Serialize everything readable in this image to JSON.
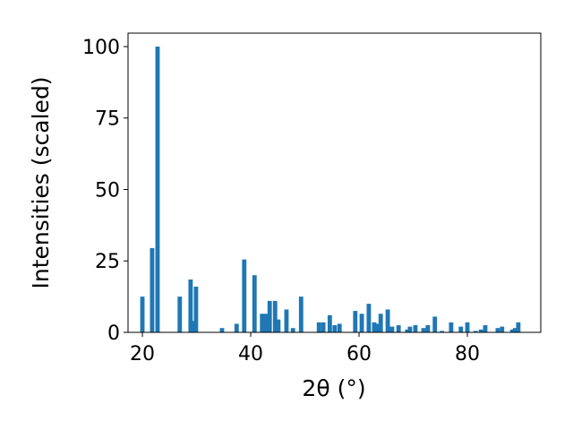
{
  "chart_data": {
    "type": "bar",
    "xlabel": "2θ (°)",
    "ylabel": "Intensities (scaled)",
    "x": [
      20.0,
      21.8,
      22.8,
      26.9,
      28.9,
      29.4,
      29.9,
      34.7,
      37.4,
      38.8,
      40.7,
      42.1,
      42.8,
      43.5,
      44.5,
      45.1,
      46.6,
      47.8,
      49.3,
      52.6,
      53.4,
      54.6,
      55.5,
      56.4,
      59.3,
      60.5,
      61.8,
      62.8,
      63.3,
      64.0,
      65.3,
      66.1,
      67.3,
      68.9,
      69.4,
      70.4,
      71.9,
      72.7,
      74.0,
      75.3,
      77.0,
      78.8,
      80.0,
      81.5,
      82.5,
      83.3,
      85.6,
      86.4,
      88.3,
      88.8,
      89.4
    ],
    "values": [
      12.5,
      29.5,
      100,
      12.5,
      18.5,
      4,
      16,
      1.5,
      3,
      25.5,
      20,
      6.5,
      6.5,
      11,
      11,
      4.5,
      8,
      1.5,
      12.5,
      3.5,
      3.5,
      6,
      2.5,
      3,
      7.5,
      6.5,
      10,
      3.5,
      3,
      6.5,
      8,
      2,
      2.5,
      1,
      2,
      2.5,
      1.5,
      2.5,
      5.5,
      0.5,
      3.5,
      2,
      3.5,
      0.5,
      1,
      2.5,
      1.5,
      2,
      1,
      1.5,
      3.5
    ],
    "color": "#1f77b4",
    "xlim": [
      17.35,
      93.55
    ],
    "xticks": [
      20,
      40,
      60,
      80
    ],
    "ylim": [
      0,
      104.7
    ],
    "yticks": [
      0,
      25,
      50,
      75,
      100
    ],
    "grid": false
  }
}
